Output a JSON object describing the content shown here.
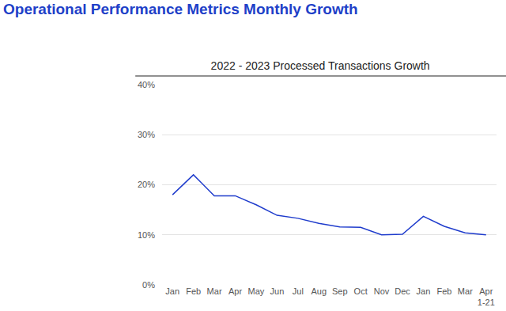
{
  "heading": "Operational Performance Metrics Monthly Growth",
  "chart_data": {
    "type": "line",
    "title": "2022 - 2023 Processed Transactions Growth",
    "categories": [
      "Jan",
      "Feb",
      "Mar",
      "Apr",
      "May",
      "Jun",
      "Jul",
      "Aug",
      "Sep",
      "Oct",
      "Nov",
      "Dec",
      "Jan",
      "Feb",
      "Mar",
      "Apr 1-21"
    ],
    "values": [
      18.0,
      22.0,
      17.8,
      17.8,
      16.0,
      13.9,
      13.3,
      12.3,
      11.6,
      11.5,
      10.0,
      10.1,
      13.7,
      11.7,
      10.4,
      10.0
    ],
    "color": "#1f3ccc",
    "ylim": [
      0,
      40
    ],
    "yticks": [
      {
        "value": 0,
        "label": "0%"
      },
      {
        "value": 10,
        "label": "10%"
      },
      {
        "value": 20,
        "label": "20%"
      },
      {
        "value": 30,
        "label": "30%"
      },
      {
        "value": 40,
        "label": "40%"
      }
    ],
    "grid": true
  }
}
